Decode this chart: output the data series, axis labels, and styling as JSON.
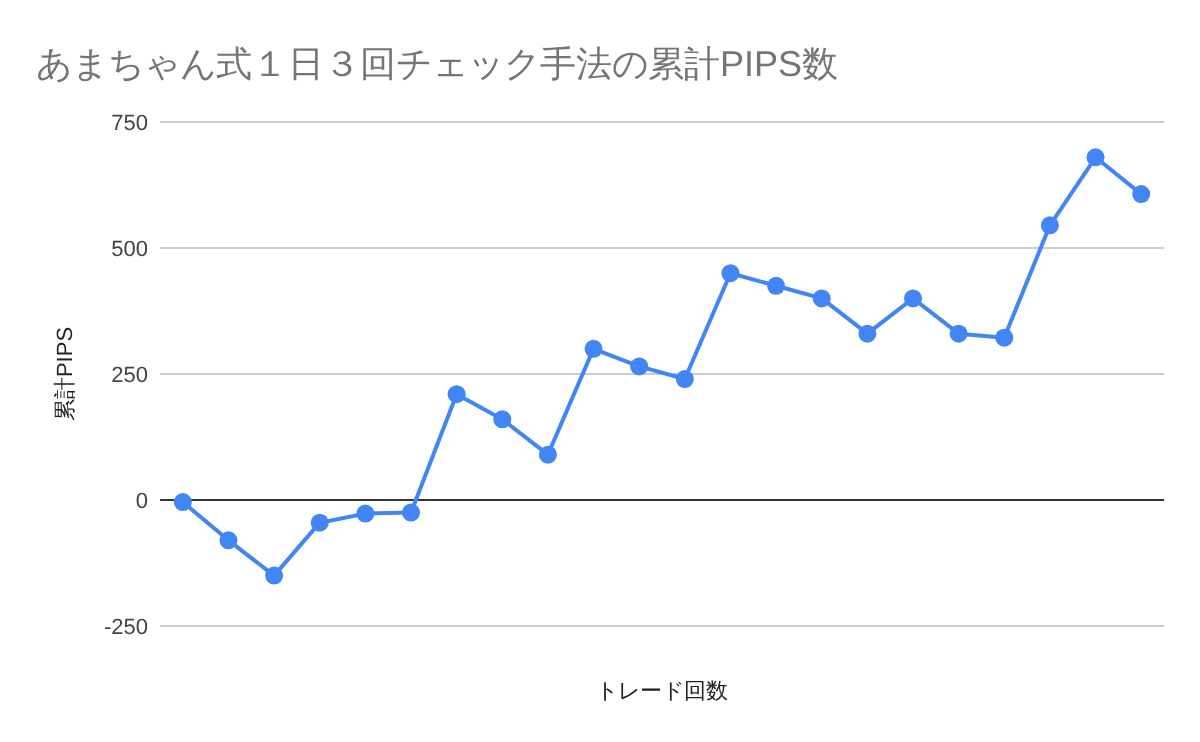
{
  "chart_data": {
    "type": "line",
    "title": "あまちゃん式１日３回チェック手法の累計PIPS数",
    "xlabel": "トレード回数",
    "ylabel": "累計PIPS",
    "categories": [
      null,
      null,
      null,
      null,
      null,
      null,
      null,
      null,
      null,
      null,
      null,
      null,
      null,
      null,
      null,
      null,
      null,
      null,
      null,
      null,
      null,
      null
    ],
    "series": [
      {
        "color": "#4285f4",
        "values": [
          -4,
          -80,
          -150,
          -45,
          -27,
          -25,
          210,
          160,
          90,
          300,
          265,
          240,
          450,
          425,
          400,
          330,
          400,
          330,
          322,
          545,
          680,
          607
        ]
      }
    ],
    "ylim": [
      -250,
      750
    ],
    "yticks": [
      -250,
      0,
      250,
      500,
      750
    ],
    "grid": "y",
    "marker": "circle",
    "line_style": "solid"
  }
}
